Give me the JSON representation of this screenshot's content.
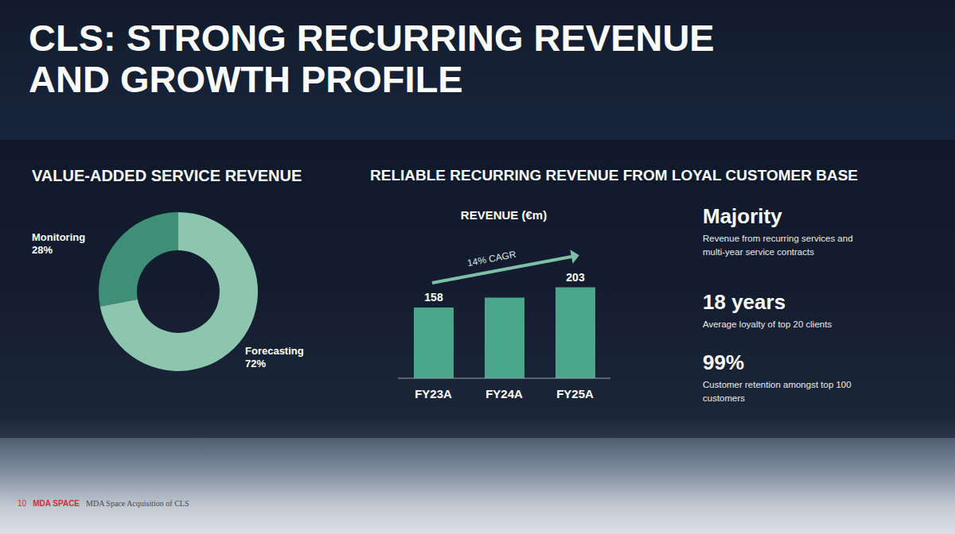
{
  "title": [
    "CLS: STRONG RECURRING REVENUE",
    "AND GROWTH PROFILE"
  ],
  "chart_data": [
    {
      "type": "pie",
      "title": "VALUE-ADDED SERVICE REVENUE",
      "categories": [
        "Monitoring",
        "Forecasting"
      ],
      "values": [
        28,
        72
      ],
      "value_labels": [
        "28%",
        "72%"
      ],
      "colors": [
        "#3f8f77",
        "#8dc6ae"
      ],
      "data_labels": true
    },
    {
      "type": "bar",
      "title": "RELIABLE RECURRING REVENUE FROM LOYAL CUSTOMER BASE",
      "subtitle": "REVENUE (€m)",
      "categories": [
        "FY23A",
        "FY24A",
        "FY25A"
      ],
      "values": [
        158,
        180,
        203
      ],
      "value_labels": [
        "158",
        null,
        "203"
      ],
      "data_labels": true,
      "color": "#4ba68b",
      "ylim": [
        0,
        250
      ],
      "tick_labels": "x",
      "annotations": [
        "14% CAGR"
      ]
    }
  ],
  "stats": [
    {
      "headline": "Majority",
      "text": "Revenue from recurring services and multi-year service contracts"
    },
    {
      "headline": "18 years",
      "text": "Average loyalty of top 20 clients"
    },
    {
      "headline": "99%",
      "text": "Customer retention amongst top 100 customers"
    }
  ],
  "footer": {
    "page": "10",
    "brand": "MDA SPACE",
    "text": "MDA Space Acquisition of CLS"
  }
}
